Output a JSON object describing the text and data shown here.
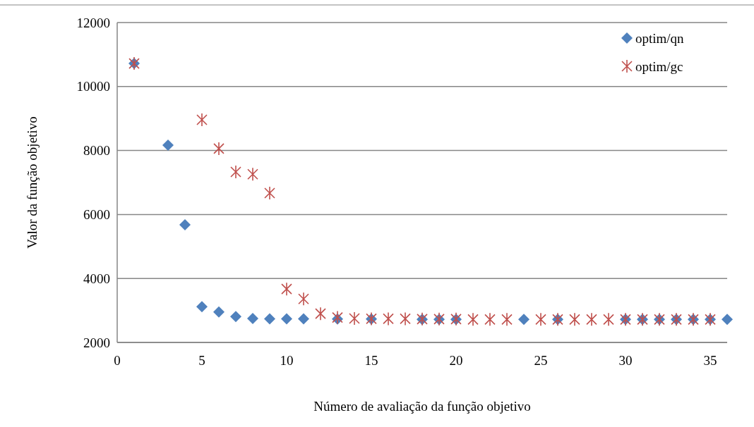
{
  "chart_data": {
    "type": "scatter",
    "xlabel": "Número de avaliação da função objetivo",
    "ylabel": "Valor da função objetivo",
    "xlim": [
      0,
      36
    ],
    "xticks": [
      0,
      5,
      10,
      15,
      20,
      25,
      30,
      35
    ],
    "ylim": [
      2000,
      12000
    ],
    "yticks": [
      2000,
      4000,
      6000,
      8000,
      10000,
      12000
    ],
    "grid": "y",
    "legend": "top right",
    "series": [
      {
        "name": "optim/qn",
        "color": "#4f81bd",
        "marker": "diamond",
        "x": [
          1,
          3,
          4,
          5,
          6,
          7,
          8,
          9,
          10,
          11,
          13,
          15,
          18,
          19,
          20,
          24,
          26,
          30,
          31,
          32,
          33,
          34,
          35,
          36
        ],
        "values": [
          10720,
          8170,
          5680,
          3120,
          2950,
          2810,
          2750,
          2740,
          2740,
          2740,
          2730,
          2730,
          2720,
          2720,
          2720,
          2720,
          2720,
          2720,
          2720,
          2720,
          2720,
          2720,
          2720,
          2720
        ]
      },
      {
        "name": "optim/gc",
        "color": "#c0504d",
        "marker": "cross",
        "x": [
          1,
          5,
          6,
          7,
          8,
          9,
          10,
          11,
          12,
          13,
          14,
          15,
          16,
          17,
          18,
          19,
          20,
          21,
          22,
          23,
          25,
          26,
          27,
          28,
          29,
          30,
          31,
          32,
          33,
          34,
          35
        ],
        "values": [
          10720,
          8960,
          8060,
          7330,
          7260,
          6670,
          3670,
          3360,
          2900,
          2780,
          2750,
          2740,
          2740,
          2740,
          2730,
          2730,
          2730,
          2720,
          2720,
          2720,
          2720,
          2720,
          2720,
          2720,
          2720,
          2720,
          2720,
          2720,
          2720,
          2720,
          2720
        ]
      }
    ]
  }
}
